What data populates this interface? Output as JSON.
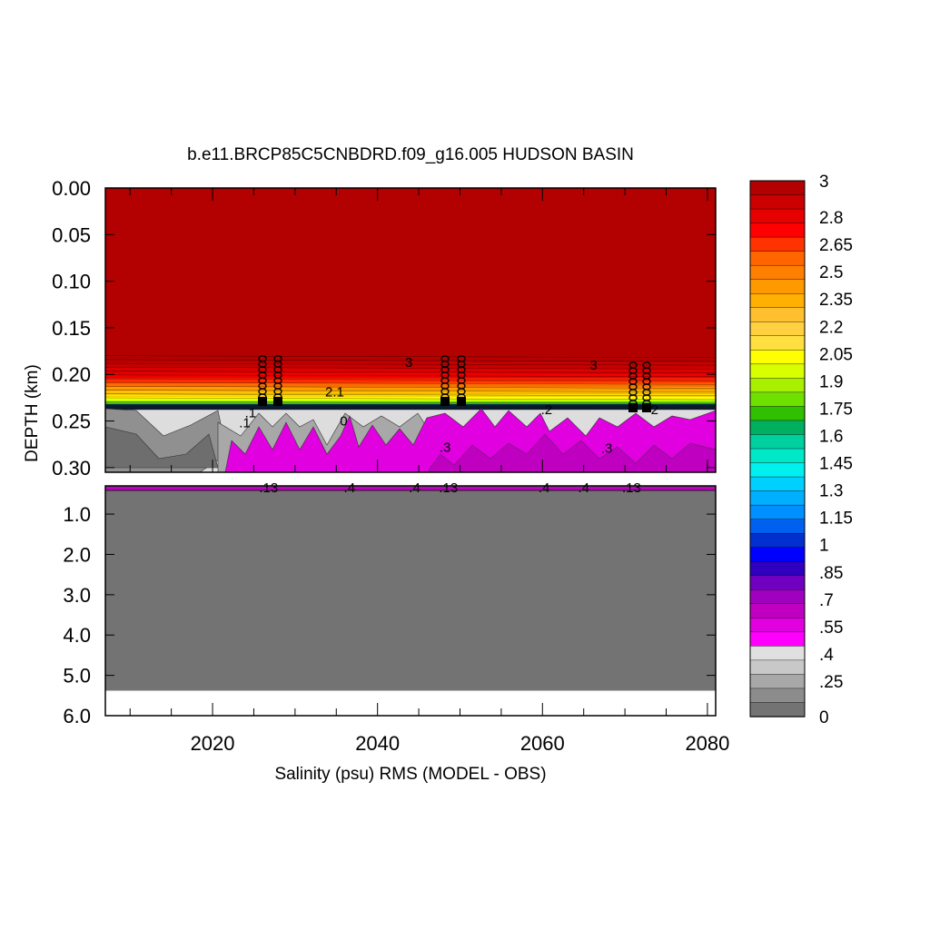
{
  "chart_data": {
    "type": "heatmap",
    "title": "b.e11.BRCP85C5CNBDRD.f09_g16.005 HUDSON BASIN",
    "xlabel": "Salinity (psu) RMS (MODEL - OBS)",
    "ylabel": "DEPTH (km)",
    "x_ticks": [
      "2020",
      "2040",
      "2060",
      "2080"
    ],
    "x_tick_values": [
      2020,
      2040,
      2060,
      2080
    ],
    "xlim": [
      2007,
      2081
    ],
    "upper_panel": {
      "ylim": [
        0.0,
        0.305
      ],
      "y_ticks": [
        "0.00",
        "0.05",
        "0.10",
        "0.15",
        "0.20",
        "0.25",
        "0.30"
      ],
      "y_tick_values": [
        0.0,
        0.05,
        0.1,
        0.15,
        0.2,
        0.25,
        0.3
      ]
    },
    "lower_panel": {
      "ylim": [
        0.3,
        6.0
      ],
      "y_ticks": [
        "1.0",
        "2.0",
        "3.0",
        "4.0",
        "5.0",
        "6.0"
      ],
      "y_tick_values": [
        1.0,
        2.0,
        3.0,
        4.0,
        5.0,
        6.0
      ]
    },
    "colorbar": {
      "labels": [
        "3",
        "2.8",
        "2.65",
        "2.5",
        "2.35",
        "2.2",
        "2.05",
        "1.9",
        "1.75",
        "1.6",
        "1.45",
        "1.3",
        "1.15",
        "1",
        ".85",
        ".7",
        ".55",
        ".4",
        ".25",
        "0"
      ],
      "label_values": [
        3,
        2.8,
        2.65,
        2.5,
        2.35,
        2.2,
        2.05,
        1.9,
        1.75,
        1.6,
        1.45,
        1.3,
        1.15,
        1,
        0.85,
        0.7,
        0.55,
        0.4,
        0.25,
        0
      ],
      "colors": [
        "#b30000",
        "#cc0000",
        "#e60000",
        "#ff0000",
        "#ff3300",
        "#ff6600",
        "#ff8000",
        "#ff9900",
        "#ffb000",
        "#ffc030",
        "#ffd040",
        "#ffe040",
        "#ffff00",
        "#d8ff00",
        "#a8f000",
        "#70e000",
        "#30c000",
        "#00b060",
        "#00d0a0",
        "#00e8c8",
        "#00f0f0",
        "#00d0ff",
        "#00b0ff",
        "#0090ff",
        "#0060f0",
        "#0030d0",
        "#0000ff",
        "#3000c0",
        "#7000c0",
        "#a000c0",
        "#c000c0",
        "#e000e0",
        "#ff00ff",
        "#e0e0e0",
        "#c8c8c8",
        "#a8a8a8",
        "#8c8c8c",
        "#737373"
      ]
    },
    "contour_labels": [
      {
        "text": "3",
        "x": 2043.8,
        "y": 0.187
      },
      {
        "text": "3",
        "x": 2066.2,
        "y": 0.19
      },
      {
        "text": "2.1",
        "x": 2034.8,
        "y": 0.219
      },
      {
        "text": ".1",
        "x": 2024.6,
        "y": 0.241
      },
      {
        "text": ".1",
        "x": 2023.9,
        "y": 0.252
      },
      {
        "text": "0",
        "x": 2035.9,
        "y": 0.25
      },
      {
        "text": ".2",
        "x": 2060.5,
        "y": 0.238
      },
      {
        "text": "2",
        "x": 2073.6,
        "y": 0.238
      },
      {
        "text": ".3",
        "x": 2048.2,
        "y": 0.278
      },
      {
        "text": ".3",
        "x": 2067.8,
        "y": 0.279
      },
      {
        "text": ".4",
        "x": 2036.6,
        "y": 0.34
      },
      {
        "text": ".4",
        "x": 2044.5,
        "y": 0.34
      },
      {
        "text": ".4",
        "x": 2060.2,
        "y": 0.34
      },
      {
        "text": ".4",
        "x": 2065.0,
        "y": 0.34
      },
      {
        "text": ".13",
        "x": 2026.8,
        "y": 0.34
      },
      {
        "text": ".13",
        "x": 2048.6,
        "y": 0.34
      },
      {
        "text": ".13",
        "x": 2070.8,
        "y": 0.34
      }
    ]
  }
}
